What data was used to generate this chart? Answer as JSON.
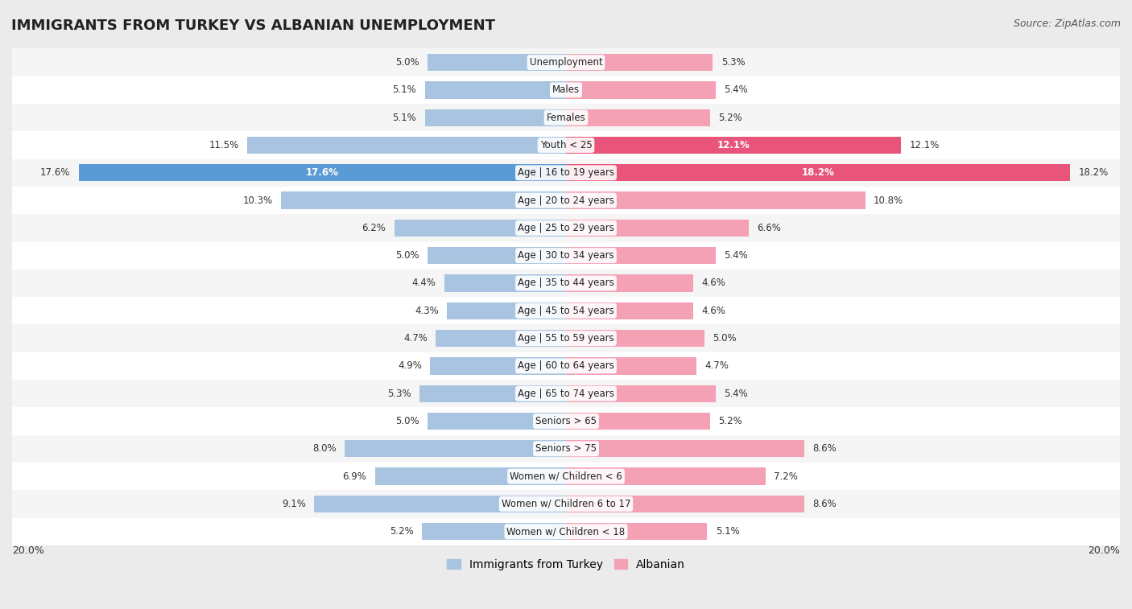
{
  "title": "IMMIGRANTS FROM TURKEY VS ALBANIAN UNEMPLOYMENT",
  "source": "Source: ZipAtlas.com",
  "categories": [
    "Unemployment",
    "Males",
    "Females",
    "Youth < 25",
    "Age | 16 to 19 years",
    "Age | 20 to 24 years",
    "Age | 25 to 29 years",
    "Age | 30 to 34 years",
    "Age | 35 to 44 years",
    "Age | 45 to 54 years",
    "Age | 55 to 59 years",
    "Age | 60 to 64 years",
    "Age | 65 to 74 years",
    "Seniors > 65",
    "Seniors > 75",
    "Women w/ Children < 6",
    "Women w/ Children 6 to 17",
    "Women w/ Children < 18"
  ],
  "turkey_values": [
    5.0,
    5.1,
    5.1,
    11.5,
    17.6,
    10.3,
    6.2,
    5.0,
    4.4,
    4.3,
    4.7,
    4.9,
    5.3,
    5.0,
    8.0,
    6.9,
    9.1,
    5.2
  ],
  "albanian_values": [
    5.3,
    5.4,
    5.2,
    12.1,
    18.2,
    10.8,
    6.6,
    5.4,
    4.6,
    4.6,
    5.0,
    4.7,
    5.4,
    5.2,
    8.6,
    7.2,
    8.6,
    5.1
  ],
  "turkey_color": "#a8c4e0",
  "albanian_color": "#f4a0b5",
  "turkey_highlight_color": "#5b9bd5",
  "albanian_highlight_color": "#e8547a",
  "bg_color": "#ebebeb",
  "row_bg_light": "#f5f5f5",
  "row_bg_white": "#ffffff",
  "axis_max": 20.0,
  "legend_turkey": "Immigrants from Turkey",
  "legend_albanian": "Albanian",
  "highlight_rows": [
    3,
    4
  ],
  "turkey_highlight_rows": [
    4
  ],
  "albanian_highlight_rows": [
    3,
    4
  ]
}
